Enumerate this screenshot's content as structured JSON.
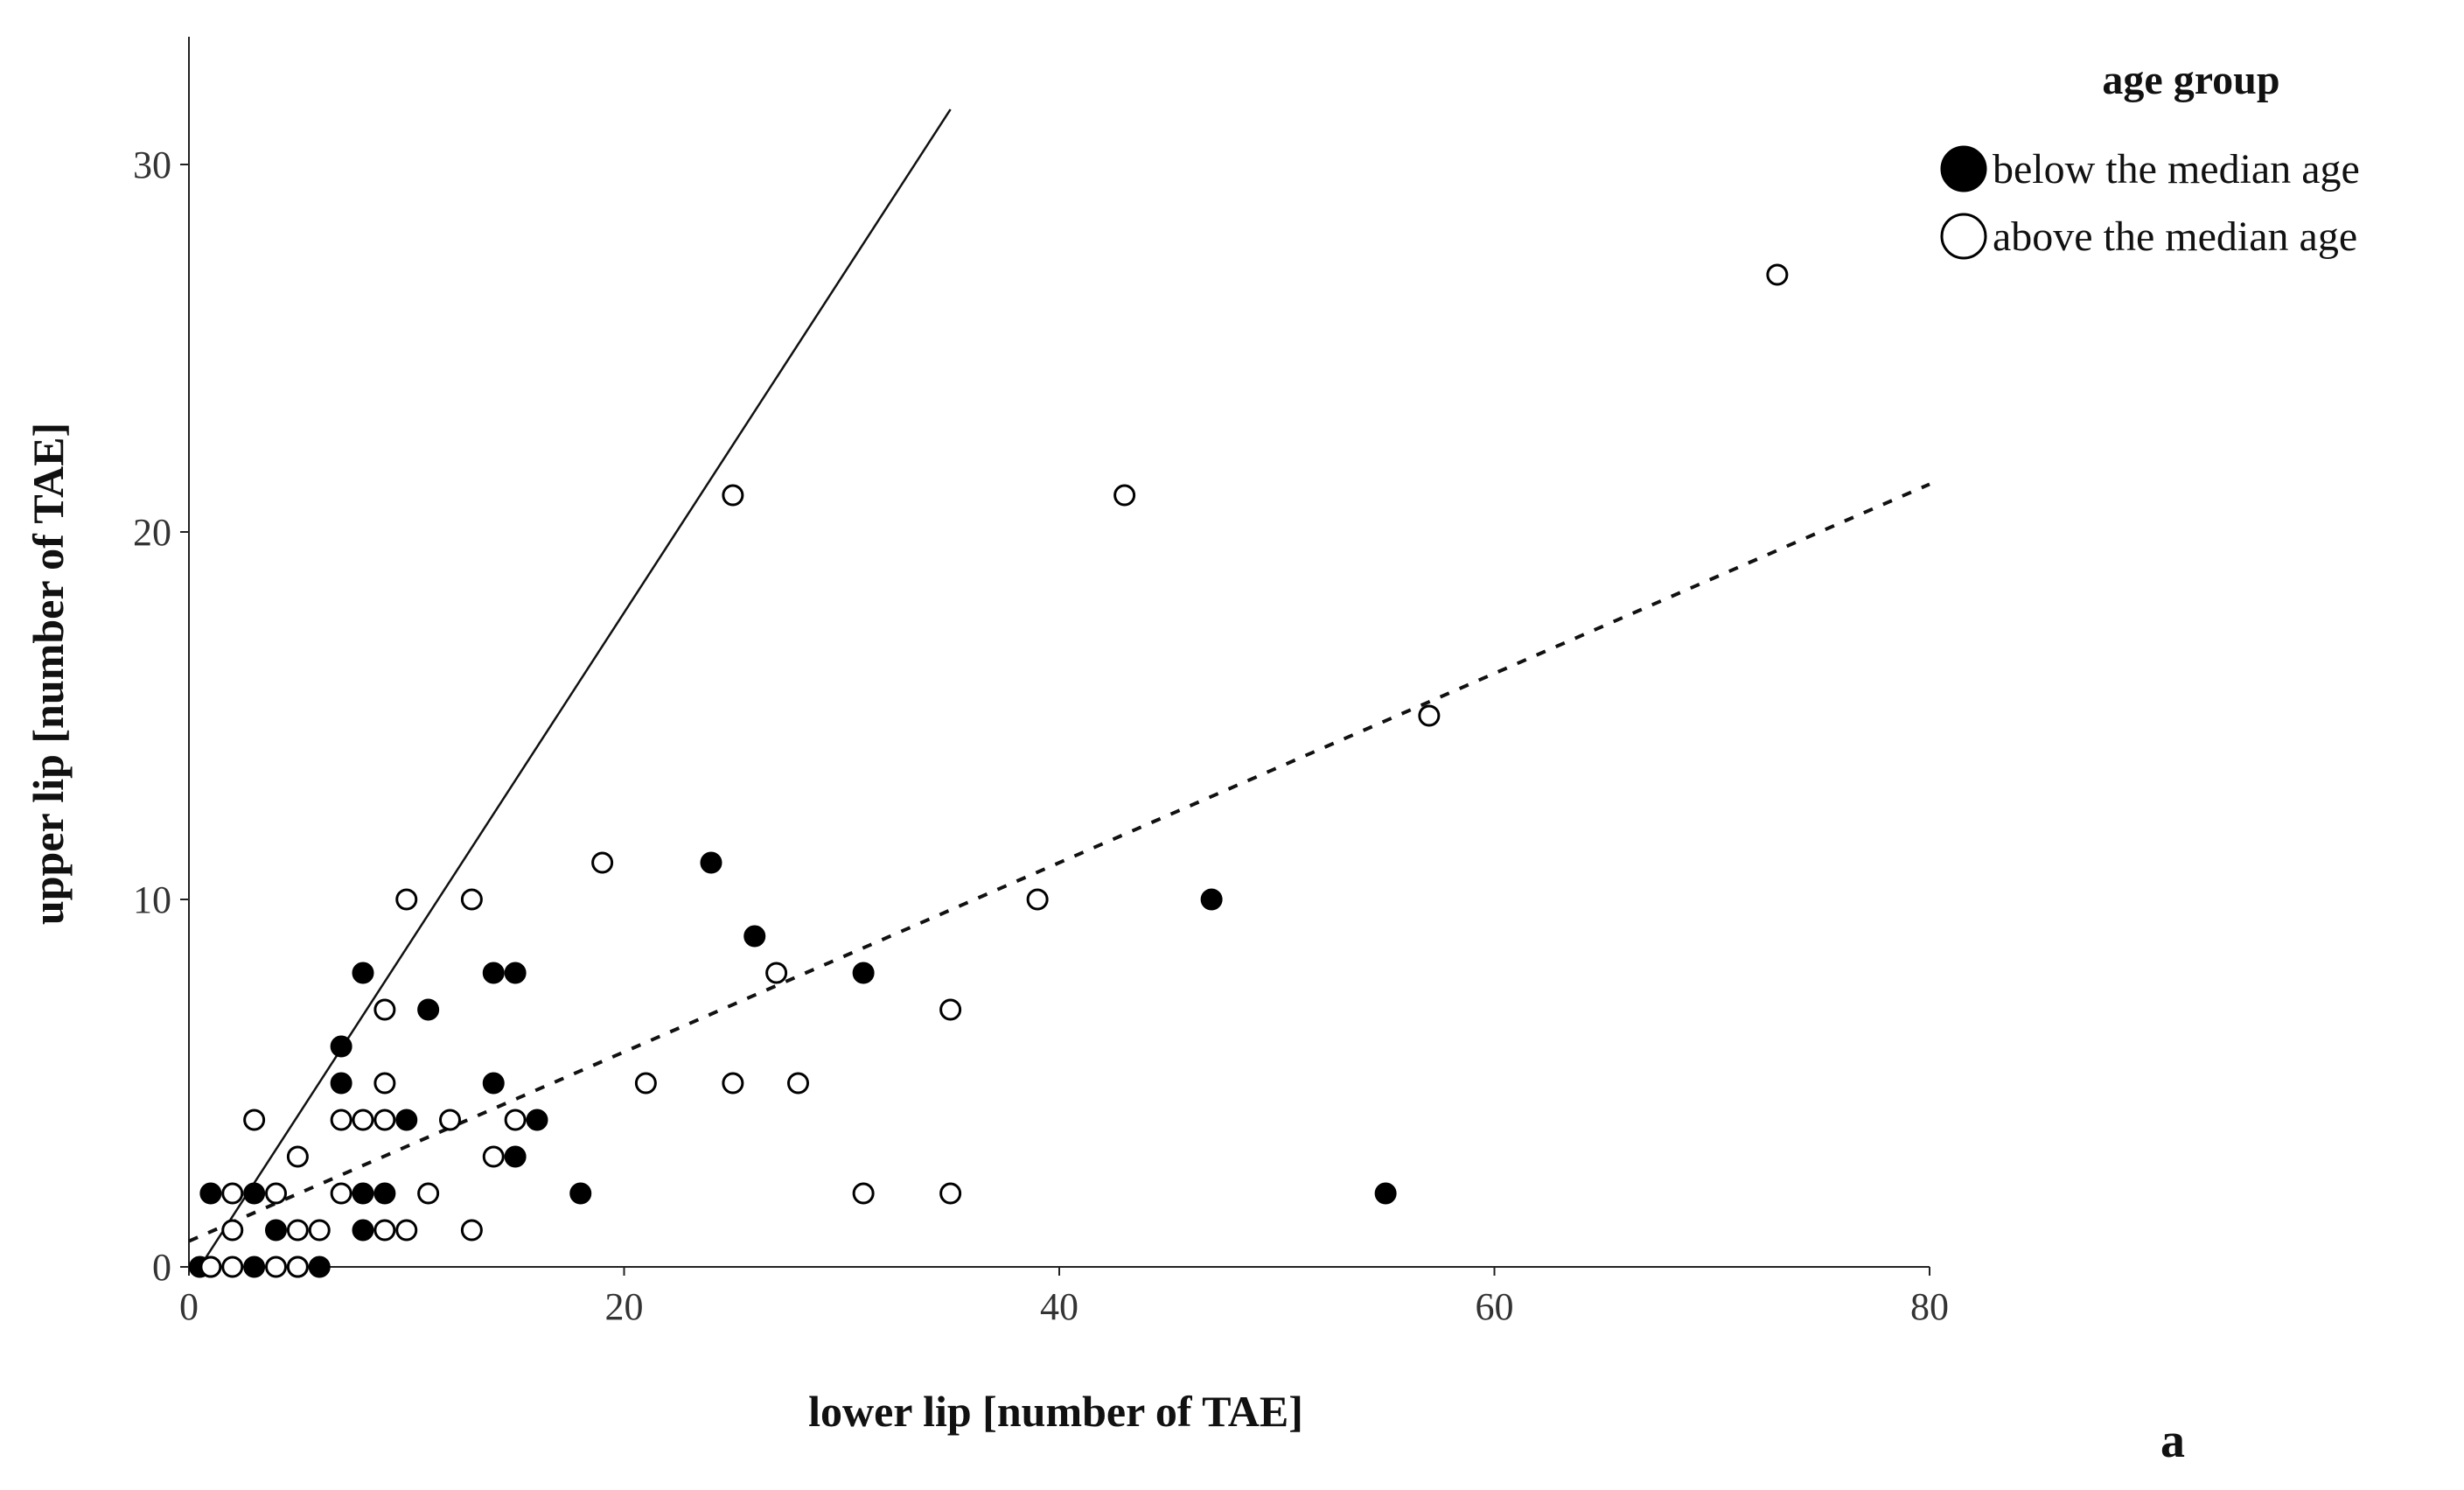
{
  "chart_data": {
    "type": "scatter",
    "xlabel": "lower lip [number of TAE]",
    "ylabel": "upper lip [number of TAE]",
    "xlim": [
      0,
      80
    ],
    "ylim": [
      0,
      33
    ],
    "xticks": [
      "0",
      "20",
      "40",
      "60",
      "80"
    ],
    "yticks": [
      "0",
      "10",
      "20",
      "30"
    ],
    "grid": false,
    "legend": {
      "title": "age group",
      "placement": "top-right",
      "entries": [
        {
          "label": "below the median age",
          "marker": "filled-circle"
        },
        {
          "label": "above the median age",
          "marker": "open-circle"
        }
      ]
    },
    "panel_label": "a",
    "series": [
      {
        "name": "below the median age",
        "marker": "filled",
        "points": [
          [
            0.5,
            0
          ],
          [
            1,
            0
          ],
          [
            1,
            2
          ],
          [
            3,
            0
          ],
          [
            3,
            2
          ],
          [
            4,
            1
          ],
          [
            5,
            0
          ],
          [
            6,
            0
          ],
          [
            7,
            5
          ],
          [
            7,
            6
          ],
          [
            8,
            1
          ],
          [
            8,
            2
          ],
          [
            8,
            8
          ],
          [
            9,
            2
          ],
          [
            10,
            4
          ],
          [
            11,
            7
          ],
          [
            14,
            5
          ],
          [
            14,
            8
          ],
          [
            15,
            3
          ],
          [
            15,
            8
          ],
          [
            16,
            4
          ],
          [
            18,
            2
          ],
          [
            24,
            11
          ],
          [
            26,
            9
          ],
          [
            31,
            8
          ],
          [
            47,
            10
          ],
          [
            55,
            2
          ]
        ]
      },
      {
        "name": "above the median age",
        "marker": "open",
        "points": [
          [
            1,
            0
          ],
          [
            2,
            0
          ],
          [
            2,
            1
          ],
          [
            2,
            2
          ],
          [
            3,
            4
          ],
          [
            4,
            0
          ],
          [
            4,
            2
          ],
          [
            5,
            0
          ],
          [
            5,
            1
          ],
          [
            5,
            3
          ],
          [
            6,
            1
          ],
          [
            7,
            2
          ],
          [
            7,
            4
          ],
          [
            8,
            4
          ],
          [
            9,
            1
          ],
          [
            9,
            4
          ],
          [
            9,
            5
          ],
          [
            9,
            7
          ],
          [
            10,
            1
          ],
          [
            10,
            10
          ],
          [
            11,
            2
          ],
          [
            12,
            4
          ],
          [
            13,
            1
          ],
          [
            13,
            10
          ],
          [
            14,
            3
          ],
          [
            15,
            4
          ],
          [
            19,
            11
          ],
          [
            21,
            5
          ],
          [
            25,
            5
          ],
          [
            25,
            21
          ],
          [
            27,
            8
          ],
          [
            28,
            5
          ],
          [
            31,
            2
          ],
          [
            35,
            2
          ],
          [
            35,
            7
          ],
          [
            39,
            10
          ],
          [
            43,
            21
          ],
          [
            57,
            15
          ],
          [
            73,
            27
          ]
        ]
      }
    ],
    "reference_lines": [
      {
        "style": "solid",
        "from": [
          0.5,
          0
        ],
        "to": [
          35,
          31.5
        ]
      },
      {
        "style": "dashed",
        "from": [
          0,
          0.7
        ],
        "to": [
          80,
          21.3
        ]
      }
    ]
  }
}
